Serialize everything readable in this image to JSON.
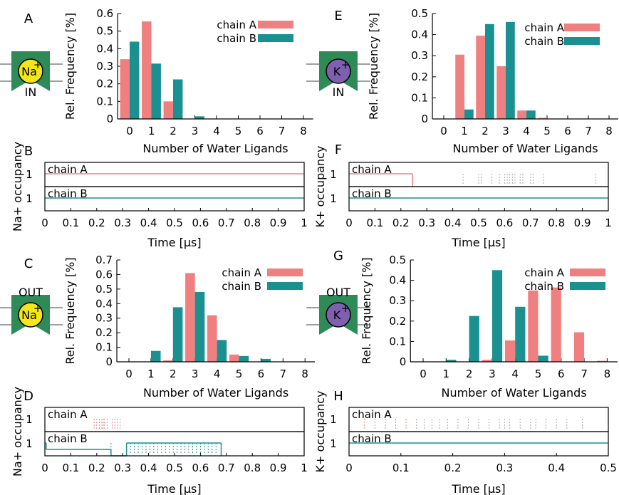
{
  "colors": {
    "chain_a": "#f08080",
    "chain_b": "#1a9090",
    "raster_gray": "#aaaaaa",
    "na_ion": "#f5e61a",
    "k_ion": "#7f5fb0",
    "channel": "#2e8b57"
  },
  "icons": {
    "A": {
      "ion": "Na",
      "charge": "+",
      "side": "IN",
      "ion_color": "na_ion",
      "name": "na-in-channel-icon"
    },
    "C": {
      "ion": "Na",
      "charge": "+",
      "side": "OUT",
      "ion_color": "na_ion",
      "name": "na-out-channel-icon"
    },
    "E": {
      "ion": "K",
      "charge": "+",
      "side": "IN",
      "ion_color": "k_ion",
      "name": "k-in-channel-icon"
    },
    "G": {
      "ion": "K",
      "charge": "+",
      "side": "OUT",
      "ion_color": "k_ion",
      "name": "k-out-channel-icon"
    }
  },
  "chart_data": [
    {
      "id": "A",
      "panel_label": "A",
      "type": "bar",
      "categories": [
        "0",
        "1",
        "2",
        "3",
        "4",
        "5",
        "6",
        "7",
        "8"
      ],
      "series": [
        {
          "name": "chain A",
          "values": [
            0.34,
            0.555,
            0.1,
            0,
            0,
            0,
            0,
            0,
            0
          ]
        },
        {
          "name": "chain B",
          "values": [
            0.44,
            0.315,
            0.225,
            0.015,
            0,
            0,
            0,
            0,
            0
          ]
        }
      ],
      "xlabel": "Number of Water Ligands",
      "ylabel": "Rel. Frequency [%]",
      "ylim": [
        0,
        0.6
      ],
      "yticks": [
        "0",
        "0.1",
        "0.2",
        "0.3",
        "0.4",
        "0.5",
        "0.6"
      ],
      "legend": "top-right"
    },
    {
      "id": "E",
      "panel_label": "E",
      "type": "bar",
      "categories": [
        "0",
        "1",
        "2",
        "3",
        "4",
        "5",
        "6",
        "7",
        "8"
      ],
      "series": [
        {
          "name": "chain A",
          "values": [
            0,
            0.305,
            0.395,
            0.25,
            0.04,
            0.005,
            0,
            0,
            0
          ]
        },
        {
          "name": "chain B",
          "values": [
            0,
            0.045,
            0.45,
            0.46,
            0.04,
            0,
            0,
            0,
            0
          ]
        }
      ],
      "xlabel": "Number of Water Ligands",
      "ylabel": "Rel. Frequency [%]",
      "ylim": [
        0,
        0.5
      ],
      "yticks": [
        "0",
        "0.1",
        "0.2",
        "0.3",
        "0.4",
        "0.5"
      ],
      "legend": "top-right"
    },
    {
      "id": "C",
      "panel_label": "C",
      "type": "bar",
      "categories": [
        "0",
        "1",
        "2",
        "3",
        "4",
        "5",
        "6",
        "7",
        "8"
      ],
      "series": [
        {
          "name": "chain A",
          "values": [
            0,
            0,
            0.01,
            0.61,
            0.32,
            0.05,
            0,
            0,
            0
          ]
        },
        {
          "name": "chain B",
          "values": [
            0,
            0.075,
            0.375,
            0.48,
            0.15,
            0.04,
            0.02,
            0,
            0
          ]
        }
      ],
      "xlabel": "Number of Water Ligands",
      "ylabel": "Rel. Frequency [%]",
      "ylim": [
        0,
        0.7
      ],
      "yticks": [
        "0",
        "0.1",
        "0.2",
        "0.3",
        "0.4",
        "0.5",
        "0.6",
        "0.7"
      ],
      "legend": "top-right"
    },
    {
      "id": "G",
      "panel_label": "G",
      "type": "bar",
      "categories": [
        "0",
        "1",
        "2",
        "3",
        "4",
        "5",
        "6",
        "7",
        "8"
      ],
      "series": [
        {
          "name": "chain A",
          "values": [
            0,
            0,
            0,
            0.01,
            0.105,
            0.35,
            0.365,
            0.145,
            0.005
          ]
        },
        {
          "name": "chain B",
          "values": [
            0,
            0.01,
            0.225,
            0.45,
            0.27,
            0.03,
            0,
            0,
            0
          ]
        }
      ],
      "xlabel": "Number of Water Ligands",
      "ylabel": "Rel. Frequency [%]",
      "ylim": [
        0,
        0.5
      ],
      "yticks": [
        "0",
        "0.1",
        "0.2",
        "0.3",
        "0.4",
        "0.5"
      ],
      "legend": "top-right"
    },
    {
      "id": "B",
      "panel_label": "B",
      "type": "line",
      "xlabel": "Time [μs]",
      "ylabel": "Na+ occupancy",
      "xlim": [
        0,
        1
      ],
      "xticks": [
        "0",
        "0.1",
        "0.2",
        "0.3",
        "0.4",
        "0.5",
        "0.6",
        "0.7",
        "0.8",
        "0.9",
        "1"
      ],
      "tracks": [
        {
          "name": "chain A",
          "ytick": "1",
          "segments": [
            [
              0,
              1,
              1
            ]
          ],
          "spikes": []
        },
        {
          "name": "chain B",
          "ytick": "1",
          "segments": [
            [
              0,
              1,
              1
            ]
          ],
          "spikes": []
        }
      ]
    },
    {
      "id": "F",
      "panel_label": "F",
      "type": "line",
      "xlabel": "Time [μs]",
      "ylabel": "K+ occupancy",
      "xlim": [
        0,
        1
      ],
      "xticks": [
        "0",
        "0.1",
        "0.2",
        "0.3",
        "0.4",
        "0.5",
        "0.6",
        "0.7",
        "0.8",
        "0.9",
        "1"
      ],
      "tracks": [
        {
          "name": "chain A",
          "ytick": "1",
          "segments": [
            [
              0,
              0.245,
              1
            ]
          ],
          "spikes": [
            0.44,
            0.5,
            0.51,
            0.55,
            0.58,
            0.6,
            0.61,
            0.62,
            0.63,
            0.64,
            0.66,
            0.67,
            0.7,
            0.71,
            0.75,
            0.95
          ],
          "spike_color": "raster_gray"
        },
        {
          "name": "chain B",
          "ytick": "1",
          "segments": [
            [
              0,
              1,
              1
            ]
          ],
          "spikes": []
        }
      ]
    },
    {
      "id": "D",
      "panel_label": "D",
      "type": "line",
      "xlabel": "Time [μs]",
      "ylabel": "Na+ occupancy",
      "xlim": [
        0,
        1
      ],
      "xticks": [
        "0",
        "0.1",
        "0.2",
        "0.3",
        "0.4",
        "0.5",
        "0.6",
        "0.7",
        "0.8",
        "0.9",
        "1"
      ],
      "tracks": [
        {
          "name": "chain A",
          "ytick": "1",
          "segments": [],
          "spikes": [
            0.19,
            0.2,
            0.21,
            0.22,
            0.225,
            0.23,
            0.24,
            0.26,
            0.27,
            0.28,
            0.29
          ],
          "spike_color": "chain_a"
        },
        {
          "name": "chain B",
          "ytick": "1",
          "segments": [
            [
              0,
              0.005,
              1
            ],
            [
              0.005,
              0.255,
              0.5
            ],
            [
              0.255,
              0.315,
              0
            ],
            [
              0.315,
              0.68,
              1
            ]
          ],
          "spikes": [
            0.255,
            0.33,
            0.345,
            0.36,
            0.375,
            0.39,
            0.405,
            0.42,
            0.435,
            0.45,
            0.465,
            0.48,
            0.495,
            0.51,
            0.525,
            0.54,
            0.555,
            0.57,
            0.585,
            0.6,
            0.615,
            0.63,
            0.645,
            0.66
          ],
          "spike_color": "chain_b"
        }
      ]
    },
    {
      "id": "H",
      "panel_label": "H",
      "type": "line",
      "xlabel": "Time [μs]",
      "ylabel": "K+ occupancy",
      "xlim": [
        0,
        0.5
      ],
      "xticks": [
        "0",
        "0.1",
        "0.2",
        "0.3",
        "0.4",
        "0.5"
      ],
      "tracks": [
        {
          "name": "chain A",
          "ytick": "1",
          "segments": [],
          "spikes": [
            0.03,
            0.05,
            0.07,
            0.09,
            0.11,
            0.13,
            0.145,
            0.16,
            0.175,
            0.19,
            0.21,
            0.23,
            0.25,
            0.27,
            0.29,
            0.3,
            0.31,
            0.33,
            0.35,
            0.36,
            0.38,
            0.4,
            0.42,
            0.45
          ],
          "spike_split": 0.115,
          "spike_color": "chain_a",
          "spike_color_after": "raster_gray"
        },
        {
          "name": "chain B",
          "ytick": "1",
          "segments": [
            [
              0,
              0.5,
              1
            ]
          ],
          "spikes": []
        }
      ]
    }
  ]
}
